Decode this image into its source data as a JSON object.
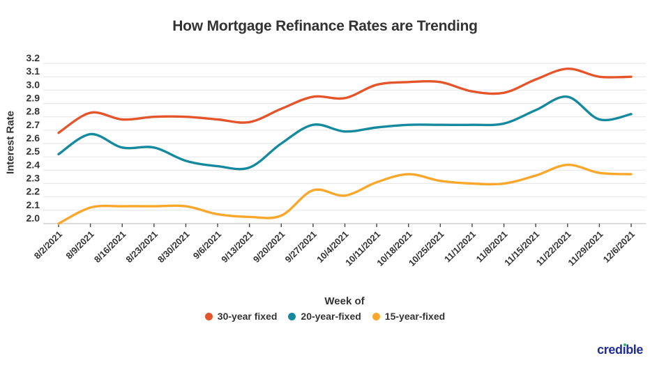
{
  "title": "How Mortgage Refinance Rates are Trending",
  "axes": {
    "x_label": "Week of",
    "y_label": "Interest Rate"
  },
  "logo": {
    "part1": "cred",
    "dotless_i": "ı",
    "part2": "ble",
    "brand_color": "#1F2D9C",
    "i_dot_color": "#2EB872"
  },
  "colors": {
    "grid": "#e7e7e7",
    "axis_line": "#cfcfcf",
    "tick": "#444444",
    "text": "#333333"
  },
  "chart_data": {
    "type": "line",
    "title": "How Mortgage Refinance Rates are Trending",
    "xlabel": "Week of",
    "ylabel": "Interest Rate",
    "ylim": [
      2.0,
      3.2
    ],
    "y_tick_step": 0.1,
    "y_ticks": [
      2.0,
      2.1,
      2.2,
      2.3,
      2.4,
      2.5,
      2.6,
      2.7,
      2.8,
      2.9,
      3.0,
      3.1,
      3.2
    ],
    "grid": true,
    "legend_position": "bottom",
    "categories": [
      "8/2/2021",
      "8/9/2021",
      "8/16/2021",
      "8/23/2021",
      "8/30/2021",
      "9/6/2021",
      "9/13/2021",
      "9/20/2021",
      "9/27/2021",
      "10/4/2021",
      "10/11/2021",
      "10/18/2021",
      "10/25/2021",
      "11/1/2021",
      "11/8/2021",
      "11/15/2021",
      "11/22/2021",
      "11/29/2021",
      "12/6/2021"
    ],
    "series": [
      {
        "name": "30-year fixed",
        "color": "#E5552B",
        "values": [
          2.68,
          2.83,
          2.78,
          2.8,
          2.8,
          2.78,
          2.76,
          2.86,
          2.95,
          2.94,
          3.04,
          3.06,
          3.06,
          2.99,
          2.98,
          3.08,
          3.16,
          3.1,
          3.1
        ]
      },
      {
        "name": "20-year-fixed",
        "color": "#15899E",
        "values": [
          2.52,
          2.67,
          2.57,
          2.57,
          2.47,
          2.43,
          2.42,
          2.6,
          2.74,
          2.69,
          2.72,
          2.74,
          2.74,
          2.74,
          2.75,
          2.85,
          2.95,
          2.78,
          2.82
        ]
      },
      {
        "name": "15-year-fixed",
        "color": "#FAA72B",
        "values": [
          2.0,
          2.12,
          2.13,
          2.13,
          2.13,
          2.07,
          2.05,
          2.06,
          2.25,
          2.21,
          2.31,
          2.37,
          2.32,
          2.3,
          2.3,
          2.36,
          2.44,
          2.38,
          2.37
        ]
      }
    ]
  }
}
